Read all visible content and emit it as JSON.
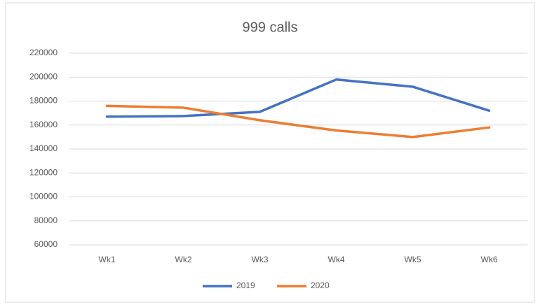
{
  "chart_data": {
    "type": "line",
    "title": "999 calls",
    "categories": [
      "Wk1",
      "Wk2",
      "Wk3",
      "Wk4",
      "Wk5",
      "Wk6"
    ],
    "series": [
      {
        "name": "2019",
        "color": "#4472c4",
        "values": [
          167000,
          167500,
          171000,
          198000,
          192000,
          172000
        ]
      },
      {
        "name": "2020",
        "color": "#ed7d31",
        "values": [
          176000,
          174500,
          164000,
          155500,
          150000,
          158000
        ]
      }
    ],
    "ylim": [
      60000,
      220000
    ],
    "yticks": [
      60000,
      80000,
      100000,
      120000,
      140000,
      160000,
      180000,
      200000,
      220000
    ],
    "grid": true,
    "legend": "bottom"
  }
}
